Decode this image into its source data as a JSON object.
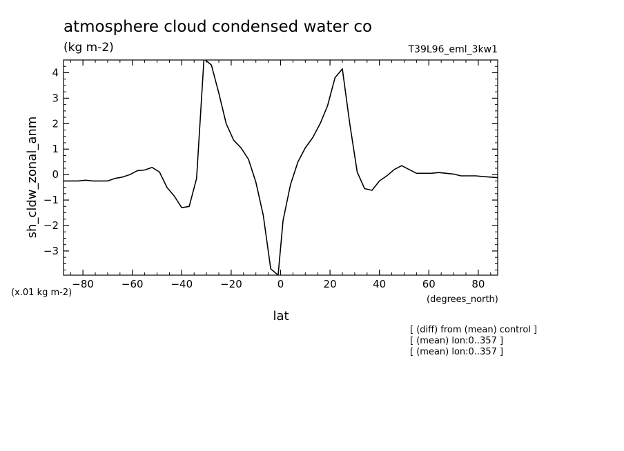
{
  "chart_data": {
    "type": "line",
    "title": "atmosphere cloud condensed water co",
    "units": "(kg m-2)",
    "experiment": "T39L96_eml_3kw1",
    "ylabel": "sh_cldw_zonal_anm",
    "yscale_note": "(x.01 kg m-2)",
    "xlabel": "lat",
    "xunits": "(degrees_north)",
    "notes": [
      "[ (diff) from (mean) control ]",
      "[ (mean) lon:0..357 ]",
      "[ (mean) lon:0..357 ]"
    ],
    "xlim": [
      -87.86,
      87.86
    ],
    "ylim": [
      -3.95,
      4.5
    ],
    "xticks": [
      -80,
      -60,
      -40,
      -20,
      0,
      20,
      40,
      60,
      80
    ],
    "yticks": [
      -3,
      -2,
      -1,
      0,
      1,
      2,
      3,
      4
    ],
    "xticklabels": [
      "−80",
      "−60",
      "−40",
      "−20",
      "0",
      "20",
      "40",
      "60",
      "80"
    ],
    "yticklabels": [
      "−3",
      "−2",
      "−1",
      "0",
      "1",
      "2",
      "3",
      "4"
    ],
    "series": [
      {
        "x": [
          -87.86,
          -85.0,
          -82.0,
          -79.0,
          -76.0,
          -73.0,
          -70.0,
          -67.0,
          -64.0,
          -61.0,
          -58.0,
          -55.0,
          -52.0,
          -49.0,
          -46.0,
          -43.0,
          -40.0,
          -37.0,
          -34.0,
          -31.0,
          -28.0,
          -25.0,
          -22.0,
          -19.0,
          -16.0,
          -13.0,
          -10.0,
          -7.0,
          -4.0,
          -1.0,
          1.0,
          4.0,
          7.0,
          10.0,
          13.0,
          16.0,
          19.0,
          22.0,
          25.0,
          28.0,
          31.0,
          34.0,
          37.0,
          40.0,
          43.0,
          46.0,
          49.0,
          52.0,
          55.0,
          58.0,
          61.0,
          64.0,
          67.0,
          70.0,
          73.0,
          76.0,
          79.0,
          82.0,
          85.0,
          87.86
        ],
        "y": [
          -0.25,
          -0.25,
          -0.25,
          -0.22,
          -0.25,
          -0.25,
          -0.25,
          -0.15,
          -0.1,
          0.0,
          0.15,
          0.18,
          0.28,
          0.1,
          -0.5,
          -0.85,
          -1.3,
          -1.25,
          -0.15,
          4.55,
          4.3,
          3.2,
          2.0,
          1.35,
          1.05,
          0.6,
          -0.3,
          -1.6,
          -3.7,
          -3.95,
          -1.8,
          -0.4,
          0.5,
          1.05,
          1.45,
          2.0,
          2.7,
          3.8,
          4.15,
          2.0,
          0.1,
          -0.55,
          -0.62,
          -0.25,
          -0.05,
          0.2,
          0.35,
          0.2,
          0.05,
          0.05,
          0.05,
          0.08,
          0.05,
          0.02,
          -0.05,
          -0.05,
          -0.05,
          -0.08,
          -0.1,
          -0.12
        ]
      }
    ]
  }
}
